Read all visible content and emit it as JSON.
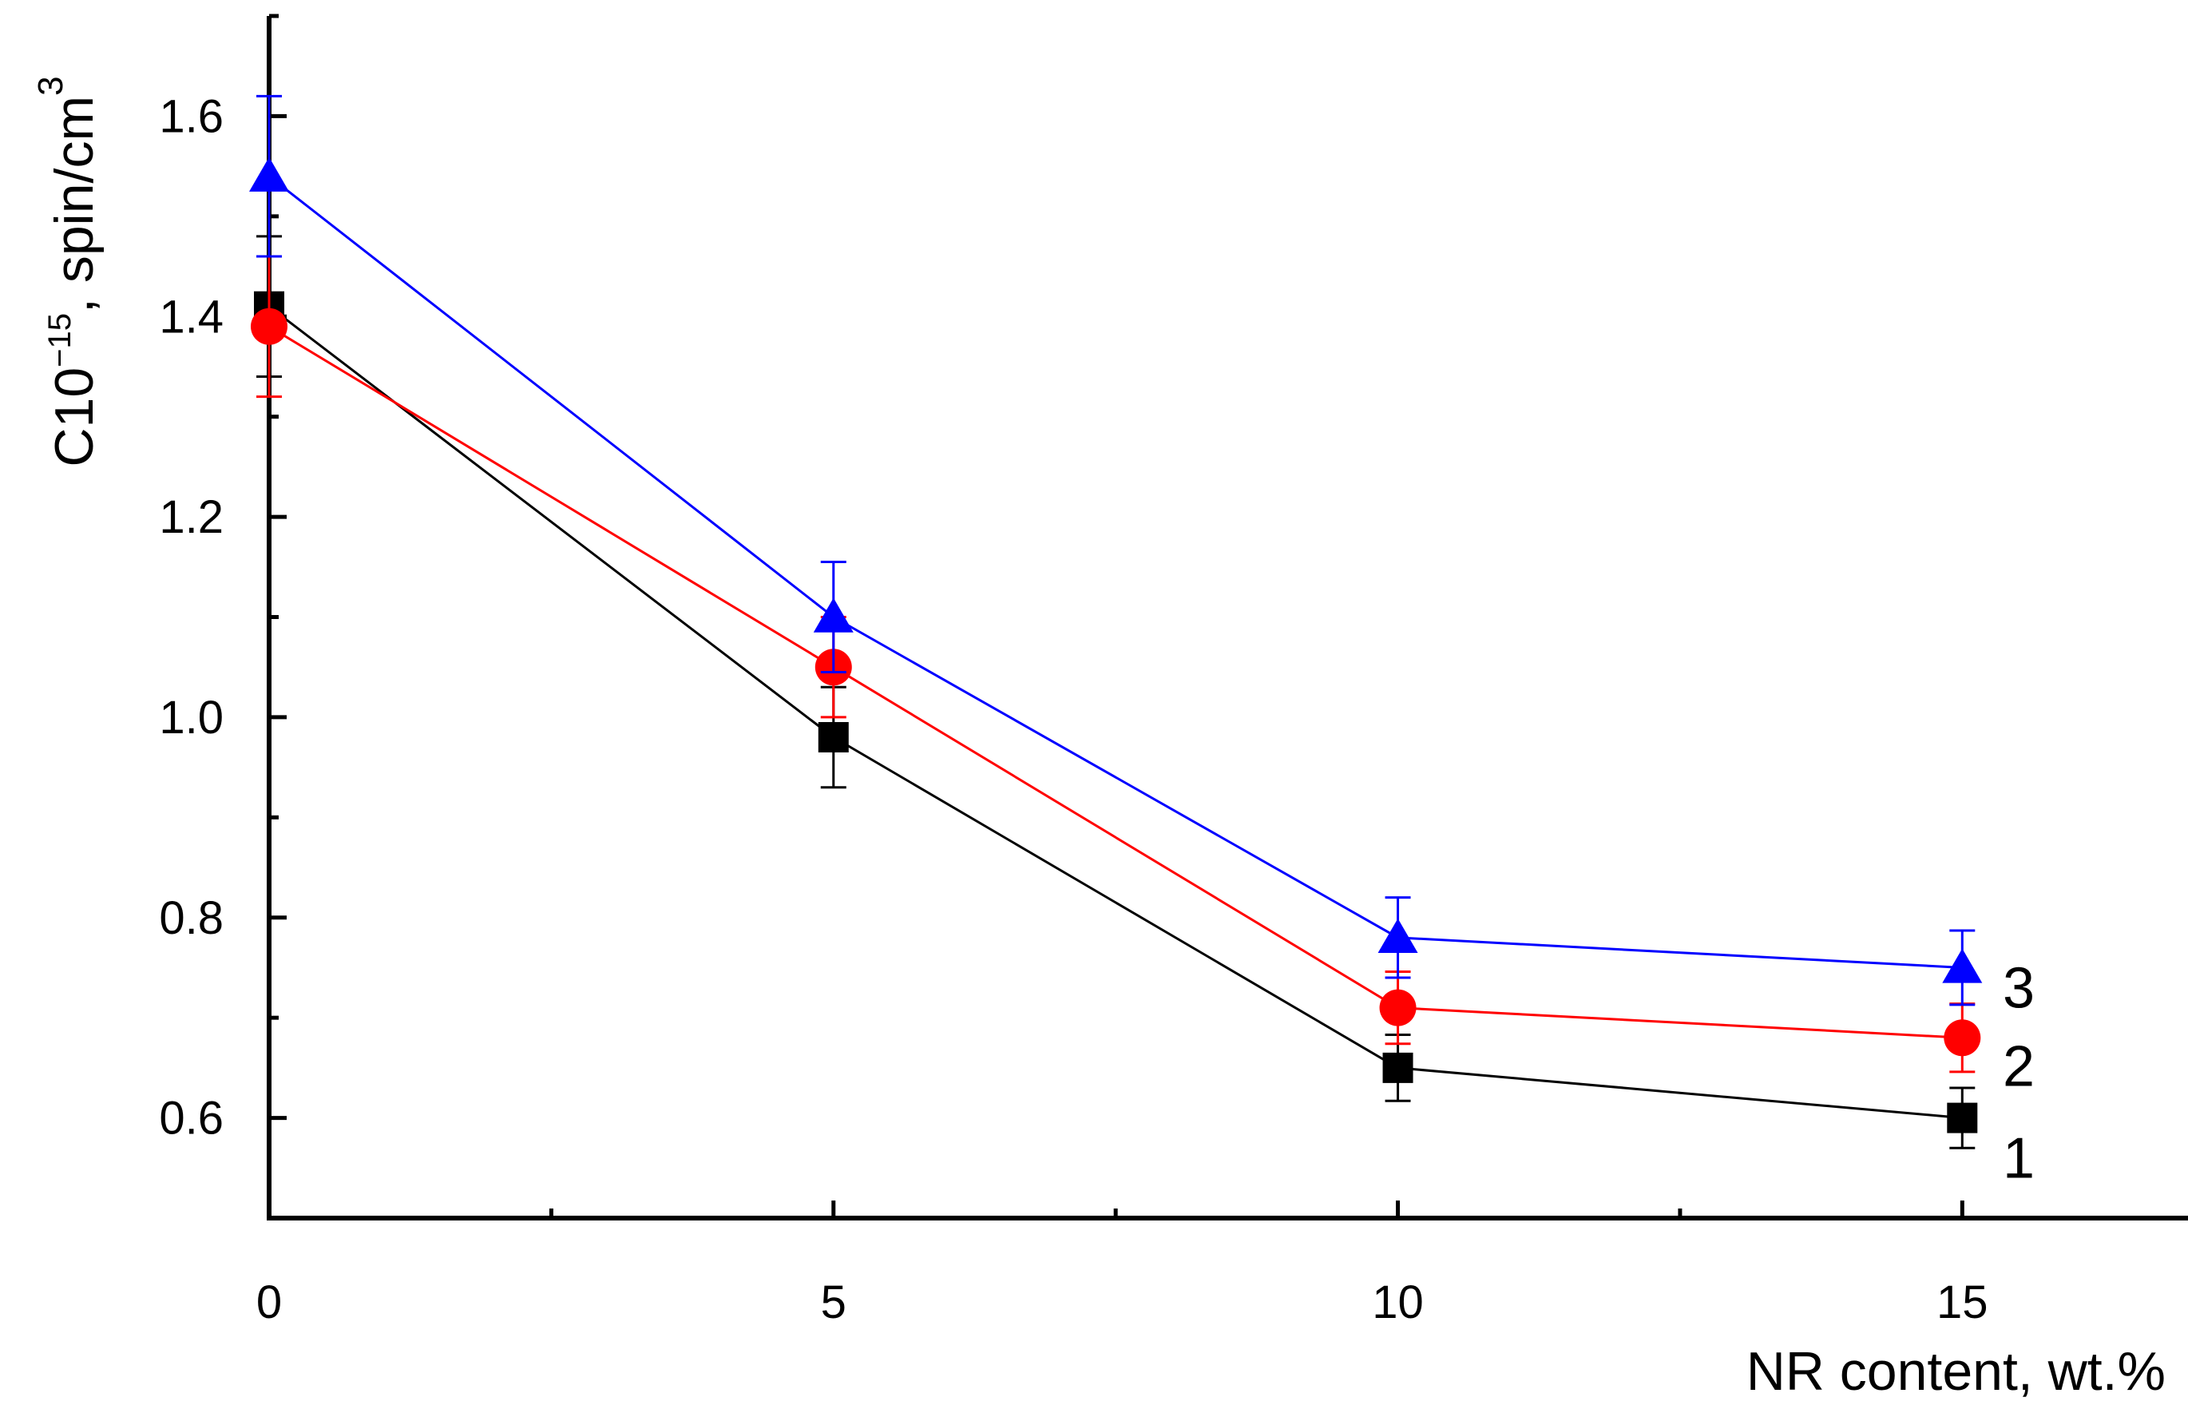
{
  "chart_data": {
    "type": "line",
    "title": "",
    "xlabel": "NR content, wt.%",
    "ylabel": {
      "prefix": "C10",
      "exponent": "−15",
      "suffix": ", spin/cm",
      "unit_exponent": "3"
    },
    "xlim": [
      0,
      17
    ],
    "ylim": [
      0.5,
      1.7
    ],
    "x_ticks": [
      0,
      5,
      10,
      15
    ],
    "x_tick_labels": [
      "0",
      "5",
      "10",
      "15"
    ],
    "y_ticks": [
      0.6,
      0.8,
      1.0,
      1.2,
      1.4,
      1.6
    ],
    "y_tick_labels": [
      "0.6",
      "0.8",
      "1.0",
      "1.2",
      "1.4",
      "1.6"
    ],
    "grid": false,
    "x": [
      0,
      5,
      10,
      15
    ],
    "series": [
      {
        "label": "1",
        "color": "#000000",
        "marker": "square",
        "values": [
          1.41,
          0.98,
          0.65,
          0.6
        ],
        "errors": [
          0.07,
          0.05,
          0.033,
          0.03
        ]
      },
      {
        "label": "2",
        "color": "#ff0000",
        "marker": "circle",
        "values": [
          1.39,
          1.05,
          0.71,
          0.68
        ],
        "errors": [
          0.07,
          0.05,
          0.036,
          0.034
        ]
      },
      {
        "label": "3",
        "color": "#0000ff",
        "marker": "triangle",
        "values": [
          1.54,
          1.1,
          0.78,
          0.75
        ],
        "errors": [
          0.08,
          0.055,
          0.04,
          0.037
        ]
      }
    ]
  }
}
